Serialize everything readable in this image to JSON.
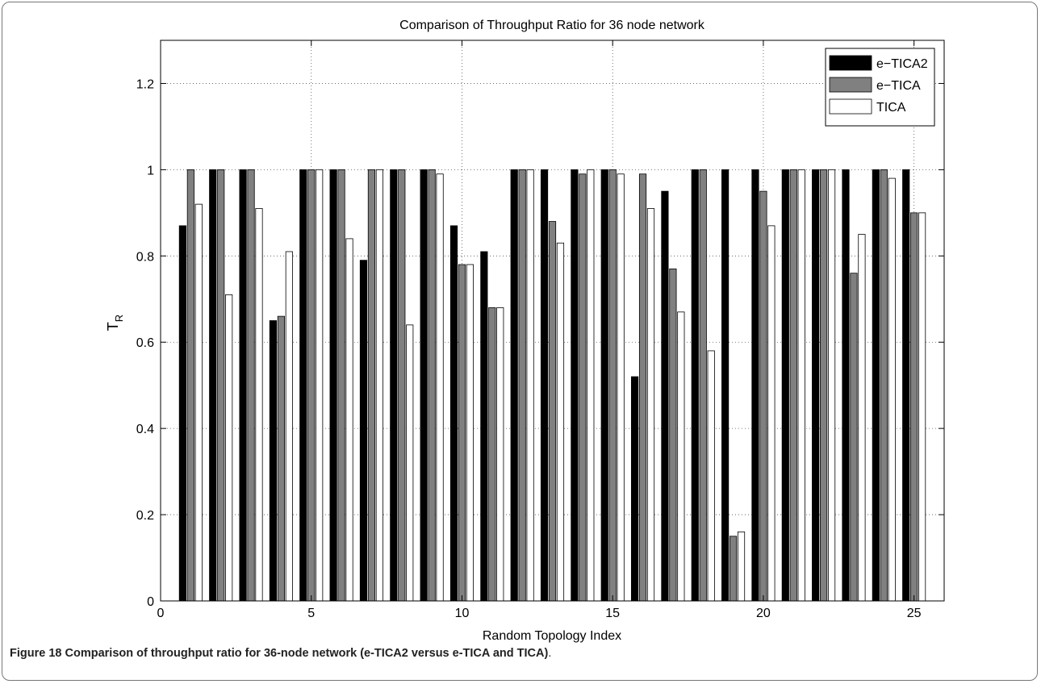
{
  "chart_data": {
    "type": "bar",
    "title": "Comparison of Throughput Ratio for 36 node network",
    "xlabel": "Random Topology Index",
    "ylabel_main": "T",
    "ylabel_sub": "R",
    "xlim": [
      0,
      26
    ],
    "ylim": [
      0,
      1.3
    ],
    "xticks": [
      0,
      5,
      10,
      15,
      20,
      25
    ],
    "xtick_labels": [
      "0",
      "5",
      "10",
      "15",
      "20",
      "25"
    ],
    "yticks": [
      0,
      0.2,
      0.4,
      0.6,
      0.8,
      1,
      1.2
    ],
    "ytick_labels": [
      "0",
      "0.2",
      "0.4",
      "0.6",
      "0.8",
      "1",
      "1.2"
    ],
    "grid": true,
    "legend_position": "top-right",
    "categories": [
      1,
      2,
      3,
      4,
      5,
      6,
      7,
      8,
      9,
      10,
      11,
      12,
      13,
      14,
      15,
      16,
      17,
      18,
      19,
      20,
      21,
      22,
      23,
      24,
      25
    ],
    "series": [
      {
        "name": "e−TICA2",
        "color": "#000000",
        "values": [
          0.87,
          1,
          1,
          0.65,
          1,
          1,
          0.79,
          1,
          1,
          0.87,
          0.81,
          1,
          1,
          1,
          1,
          0.52,
          0.95,
          1,
          1,
          1,
          1,
          1,
          1,
          1,
          1
        ]
      },
      {
        "name": "e−TICA",
        "color": "#808080",
        "values": [
          1,
          1,
          1,
          0.66,
          1,
          1,
          1,
          1,
          1,
          0.78,
          0.68,
          1,
          0.88,
          0.99,
          1,
          0.99,
          0.77,
          1,
          0.15,
          0.95,
          1,
          1,
          0.76,
          1,
          0.9
        ]
      },
      {
        "name": "TICA",
        "color": "#ffffff",
        "values": [
          0.92,
          0.71,
          0.91,
          0.81,
          1,
          0.84,
          1,
          0.64,
          0.99,
          0.78,
          0.68,
          1,
          0.83,
          1,
          0.99,
          0.91,
          0.67,
          0.58,
          0.16,
          0.87,
          1,
          1,
          0.85,
          0.98,
          0.9
        ]
      }
    ]
  },
  "caption": {
    "figure_label": "Figure 18",
    "description": "Comparison of throughput ratio for 36-node network (e-TICA2 versus e-TICA and TICA)",
    "trailing": "."
  }
}
